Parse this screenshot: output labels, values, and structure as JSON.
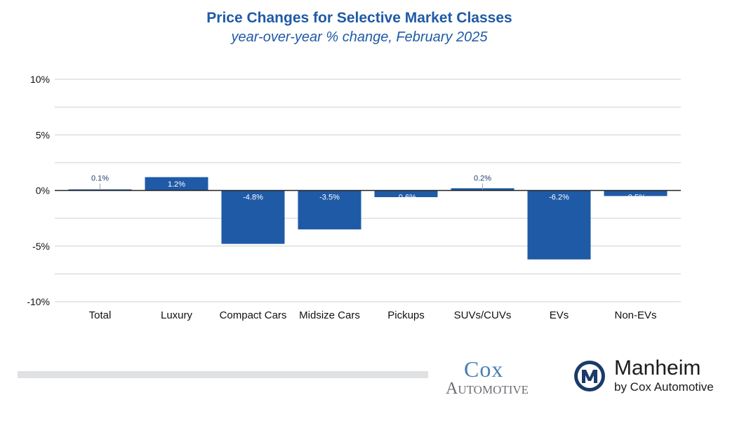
{
  "chart_data": {
    "type": "bar",
    "title": "Price Changes for Selective Market Classes",
    "subtitle": "year-over-year % change, February 2025",
    "categories": [
      "Total",
      "Luxury",
      "Compact Cars",
      "Midsize Cars",
      "Pickups",
      "SUVs/CUVs",
      "EVs",
      "Non-EVs"
    ],
    "values": [
      0.1,
      1.2,
      -4.8,
      -3.5,
      -0.6,
      0.2,
      -6.2,
      -0.5
    ],
    "data_labels": [
      "0.1%",
      "1.2%",
      "-4.8%",
      "-3.5%",
      "-0.6%",
      "0.2%",
      "-6.2%",
      "-0.5%"
    ],
    "ylim": [
      -10,
      10
    ],
    "yticks": [
      10,
      5,
      0,
      -5,
      -10
    ],
    "ytick_labels": [
      "10%",
      "5%",
      "0%",
      "-5%",
      "-10%"
    ],
    "xlabel": "",
    "ylabel": "",
    "grid": true,
    "bar_color": "#1f5aa6"
  },
  "branding": {
    "cox_line1": "Cox",
    "cox_line2": "Automotive",
    "manheim_name": "Manheim",
    "manheim_by": "by Cox Automotive"
  },
  "colors": {
    "title": "#1f5aa6",
    "bar": "#1f5aa6",
    "grid": "#d0d0d0",
    "cox": "#4a7fb3"
  }
}
